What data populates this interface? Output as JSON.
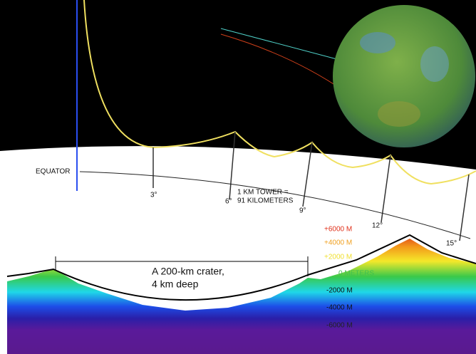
{
  "labels": {
    "equator": "EQUATOR",
    "degrees": [
      "3°",
      "6°",
      "9°",
      "12°",
      "15°"
    ],
    "tower": [
      "1 KM TOWER =",
      "91 KILOMETERS"
    ],
    "elevations": [
      "+6000 M",
      "+4000 M",
      "+2000 M",
      "0 METERS",
      "-2000 M",
      "-4000 M",
      "-6000 M"
    ],
    "crater": [
      "A 200-km crater,",
      "4 km deep"
    ]
  }
}
